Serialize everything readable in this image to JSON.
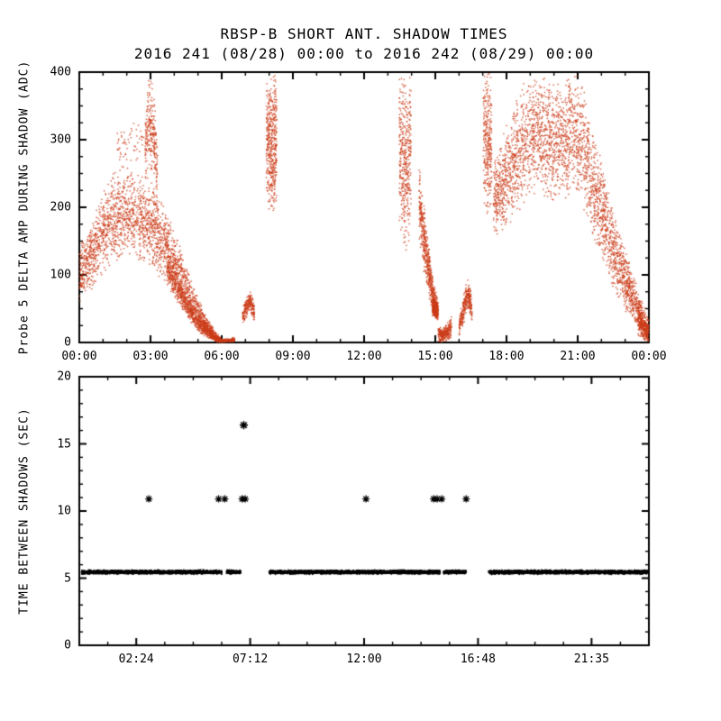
{
  "page": {
    "title": "RBSP-B SHORT ANT. SHADOW TIMES",
    "subtitle": "2016 241 (08/28) 00:00 to 2016 242 (08/29) 00:00"
  },
  "chart_data": [
    {
      "type": "scatter",
      "name": "probe5-delta-amp-during-shadow",
      "ylabel": "Probe 5 DELTA AMP DURING SHADOW (ADC)",
      "xlabel": "",
      "xlim_hours": [
        0,
        24
      ],
      "ylim": [
        0,
        400
      ],
      "xticks": [
        {
          "hour": 0,
          "label": "00:00"
        },
        {
          "hour": 3,
          "label": "03:00"
        },
        {
          "hour": 6,
          "label": "06:00"
        },
        {
          "hour": 9,
          "label": "09:00"
        },
        {
          "hour": 12,
          "label": "12:00"
        },
        {
          "hour": 15,
          "label": "15:00"
        },
        {
          "hour": 18,
          "label": "18:00"
        },
        {
          "hour": 21,
          "label": "21:00"
        },
        {
          "hour": 24,
          "label": "00:00"
        }
      ],
      "yticks": [
        0,
        100,
        200,
        300,
        400
      ],
      "minor_x_hours": 1,
      "minor_y": 25,
      "marker": "dot",
      "color": "#cc3d1a",
      "clusters": [
        {
          "name": "dawn-cloud",
          "count": 2400,
          "envelope": [
            [
              0.0,
              55,
              140
            ],
            [
              0.4,
              70,
              175
            ],
            [
              0.8,
              90,
              215
            ],
            [
              1.2,
              105,
              240
            ],
            [
              1.5,
              112,
              255
            ],
            [
              1.8,
              118,
              262
            ],
            [
              2.1,
              120,
              266
            ],
            [
              2.4,
              118,
              258
            ],
            [
              2.7,
              112,
              250
            ],
            [
              3.0,
              105,
              242
            ],
            [
              3.3,
              95,
              228
            ],
            [
              3.6,
              85,
              205
            ],
            [
              3.9,
              70,
              180
            ],
            [
              4.2,
              55,
              150
            ],
            [
              4.5,
              40,
              118
            ],
            [
              4.8,
              25,
              88
            ],
            [
              5.1,
              14,
              60
            ],
            [
              5.4,
              6,
              38
            ],
            [
              5.7,
              1,
              18
            ],
            [
              5.95,
              0,
              8
            ]
          ]
        },
        {
          "name": "dawn-core",
          "count": 800,
          "envelope": [
            [
              3.7,
              85,
              140
            ],
            [
              4.0,
              65,
              115
            ],
            [
              4.3,
              48,
              92
            ],
            [
              4.6,
              33,
              70
            ],
            [
              4.9,
              20,
              52
            ],
            [
              5.2,
              10,
              36
            ],
            [
              5.5,
              4,
              22
            ],
            [
              5.8,
              0,
              10
            ]
          ]
        },
        {
          "name": "dawn-spike",
          "count": 240,
          "envelope": [
            [
              2.78,
              235,
              330
            ],
            [
              2.88,
              250,
              385
            ],
            [
              2.98,
              255,
              400
            ],
            [
              3.08,
              245,
              392
            ],
            [
              3.18,
              230,
              360
            ],
            [
              3.28,
              215,
              300
            ]
          ]
        },
        {
          "name": "dawn-halo",
          "count": 90,
          "envelope": [
            [
              1.6,
              255,
              320
            ],
            [
              2.2,
              262,
              335
            ],
            [
              2.8,
              258,
              330
            ],
            [
              3.3,
              240,
              300
            ]
          ]
        },
        {
          "name": "floor-0600",
          "count": 200,
          "envelope": [
            [
              5.75,
              0,
              6
            ],
            [
              6.0,
              0,
              5
            ],
            [
              6.3,
              0,
              6
            ],
            [
              6.55,
              0,
              8
            ]
          ]
        },
        {
          "name": "blob-0710",
          "count": 240,
          "envelope": [
            [
              6.88,
              28,
              55
            ],
            [
              7.0,
              32,
              62
            ],
            [
              7.1,
              40,
              72
            ],
            [
              7.2,
              45,
              78
            ],
            [
              7.3,
              38,
              68
            ],
            [
              7.38,
              30,
              55
            ]
          ]
        },
        {
          "name": "streak-0800",
          "count": 480,
          "envelope": [
            [
              7.88,
              215,
              395
            ],
            [
              7.98,
              185,
              400
            ],
            [
              8.1,
              172,
              400
            ],
            [
              8.22,
              178,
              400
            ],
            [
              8.32,
              205,
              395
            ]
          ]
        },
        {
          "name": "streak-1340",
          "count": 420,
          "envelope": [
            [
              13.48,
              170,
              400
            ],
            [
              13.6,
              135,
              400
            ],
            [
              13.75,
              122,
              400
            ],
            [
              13.88,
              130,
              400
            ],
            [
              13.98,
              165,
              398
            ]
          ]
        },
        {
          "name": "descend-1440",
          "count": 650,
          "envelope": [
            [
              14.32,
              150,
              268
            ],
            [
              14.5,
              105,
              215
            ],
            [
              14.68,
              72,
              165
            ],
            [
              14.85,
              48,
              112
            ],
            [
              15.0,
              38,
              80
            ],
            [
              15.12,
              32,
              62
            ]
          ]
        },
        {
          "name": "knot-1500",
          "count": 380,
          "envelope": [
            [
              14.88,
              38,
              68
            ],
            [
              15.0,
              35,
              62
            ],
            [
              15.1,
              33,
              58
            ]
          ]
        },
        {
          "name": "floor-1520",
          "count": 280,
          "envelope": [
            [
              15.12,
              0,
              26
            ],
            [
              15.3,
              0,
              20
            ],
            [
              15.5,
              2,
              30
            ],
            [
              15.68,
              6,
              40
            ]
          ]
        },
        {
          "name": "blob-1615",
          "count": 320,
          "envelope": [
            [
              16.0,
              8,
              40
            ],
            [
              16.12,
              18,
              58
            ],
            [
              16.25,
              32,
              82
            ],
            [
              16.35,
              48,
              95
            ],
            [
              16.45,
              42,
              88
            ],
            [
              16.55,
              28,
              65
            ]
          ]
        },
        {
          "name": "streak-1710",
          "count": 300,
          "envelope": [
            [
              17.02,
              210,
              400
            ],
            [
              17.12,
              180,
              400
            ],
            [
              17.25,
              172,
              400
            ],
            [
              17.38,
              195,
              398
            ]
          ]
        },
        {
          "name": "dusk-cloud",
          "count": 3000,
          "envelope": [
            [
              17.45,
              150,
              278
            ],
            [
              17.8,
              158,
              305
            ],
            [
              18.1,
              168,
              335
            ],
            [
              18.4,
              180,
              362
            ],
            [
              18.7,
              195,
              388
            ],
            [
              19.0,
              210,
              400
            ],
            [
              19.3,
              218,
              400
            ],
            [
              19.6,
              210,
              396
            ],
            [
              19.9,
              200,
              385
            ],
            [
              20.2,
              205,
              390
            ],
            [
              20.5,
              212,
              398
            ],
            [
              20.8,
              215,
              400
            ],
            [
              21.05,
              205,
              400
            ],
            [
              21.3,
              185,
              372
            ],
            [
              21.55,
              160,
              335
            ],
            [
              21.8,
              138,
              300
            ],
            [
              22.1,
              112,
              258
            ],
            [
              22.4,
              88,
              215
            ],
            [
              22.7,
              65,
              175
            ],
            [
              23.0,
              46,
              138
            ],
            [
              23.3,
              30,
              105
            ],
            [
              23.6,
              16,
              75
            ],
            [
              23.85,
              5,
              52
            ],
            [
              24.0,
              0,
              38
            ]
          ]
        },
        {
          "name": "end-knot",
          "count": 220,
          "envelope": [
            [
              23.55,
              8,
              55
            ],
            [
              23.75,
              3,
              40
            ],
            [
              23.95,
              0,
              28
            ]
          ]
        }
      ]
    },
    {
      "type": "scatter",
      "name": "time-between-shadows",
      "ylabel": "TIME BETWEEN SHADOWS (SEC)",
      "xlabel": "",
      "xlim_hours": [
        0,
        24
      ],
      "ylim": [
        0,
        20
      ],
      "xticks": [
        {
          "hour": 2.4,
          "label": "02:24"
        },
        {
          "hour": 7.2,
          "label": "07:12"
        },
        {
          "hour": 12,
          "label": "12:00"
        },
        {
          "hour": 16.8,
          "label": "16:48"
        },
        {
          "hour": 21.5833,
          "label": "21:35"
        }
      ],
      "yticks": [
        0,
        5,
        10,
        15,
        20
      ],
      "minor_x_hours": 1.2,
      "minor_y": 1,
      "marker": "dot",
      "color": "#000000",
      "band": {
        "y": 5.45,
        "halfwidth": 0.14,
        "points_per_hour": 420,
        "segments_hours": [
          [
            0.1,
            6.0
          ],
          [
            6.2,
            6.8
          ],
          [
            8.0,
            15.2
          ],
          [
            15.35,
            16.3
          ],
          [
            17.25,
            23.93
          ]
        ]
      },
      "outliers": {
        "marker": "asterisk",
        "y": 10.9,
        "x_hours": [
          2.93,
          5.87,
          6.13,
          6.86,
          6.99,
          12.08,
          14.93,
          15.08,
          15.27,
          16.3
        ]
      },
      "peak_outlier": {
        "marker": "asterisk",
        "x_hour": 6.93,
        "y": 16.4
      }
    }
  ]
}
